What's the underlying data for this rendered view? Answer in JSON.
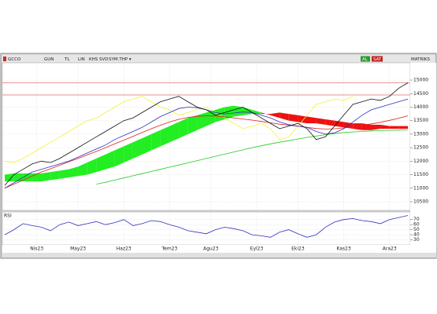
{
  "toolbar": {
    "symbol": "GCCO",
    "period": "GUN",
    "currency": "TL",
    "scale": "LIN",
    "items": [
      "KHS",
      "SVD",
      "SYM.THP ▾"
    ],
    "buy": "AL",
    "sell": "SAT",
    "brand": "MATRIKS"
  },
  "chart_data": [
    {
      "type": "line",
      "xlim": [
        0,
        44
      ],
      "xticks": [
        {
          "value": 3.5,
          "label": "Nis23"
        },
        {
          "value": 8,
          "label": "May23"
        },
        {
          "value": 13,
          "label": "Haz23"
        },
        {
          "value": 18,
          "label": "Tem23"
        },
        {
          "value": 22.5,
          "label": "Agu23"
        },
        {
          "value": 27.5,
          "label": "Eyl23"
        },
        {
          "value": 32,
          "label": "Eki23"
        },
        {
          "value": 37,
          "label": "Kas23"
        },
        {
          "value": 42,
          "label": "Ara23"
        }
      ],
      "ylim": [
        10180,
        15640
      ],
      "yticks": [
        10500,
        11000,
        11500,
        12000,
        12500,
        13000,
        13500,
        14000,
        14500,
        15000
      ],
      "grid": true,
      "levels": [
        14900,
        14450
      ],
      "level_color": "#e07070",
      "cloud": {
        "span_a": [
          11500,
          11550,
          11550,
          11550,
          11550,
          11600,
          11650,
          11700,
          11800,
          11950,
          12100,
          12250,
          12400,
          12550,
          12700,
          12850,
          13000,
          13150,
          13300,
          13450,
          13600,
          13700,
          13800,
          13900,
          14000,
          14050,
          14000,
          13900,
          13800,
          13700,
          13600,
          13500,
          13450,
          13400,
          13400,
          13350,
          13300,
          13250,
          13200,
          13150,
          13150,
          13200,
          13200,
          13200,
          13200
        ],
        "span_b": [
          11250,
          11250,
          11250,
          11250,
          11250,
          11300,
          11350,
          11400,
          11450,
          11500,
          11600,
          11700,
          11800,
          11950,
          12100,
          12250,
          12400,
          12550,
          12700,
          12850,
          13000,
          13150,
          13300,
          13450,
          13550,
          13650,
          13700,
          13750,
          13750,
          13750,
          13800,
          13750,
          13700,
          13650,
          13600,
          13550,
          13500,
          13450,
          13400,
          13400,
          13350,
          13350,
          13300,
          13300,
          13300
        ],
        "up_color": "#22ee22",
        "down_color": "#ee1111"
      },
      "series": [
        {
          "color": "#f2f23a",
          "values": [
            12000,
            11950,
            12100,
            12300,
            12500,
            12700,
            12900,
            13100,
            13300,
            13500,
            13600,
            13800,
            14000,
            14200,
            14300,
            14400,
            14200,
            14000,
            13900,
            13700,
            13800,
            13900,
            14000,
            13800,
            13600,
            13400,
            13200,
            13300,
            13400,
            13200,
            12800,
            12900,
            13300,
            13700,
            14100,
            14200,
            14300,
            14250,
            14400,
            null,
            null,
            null,
            null,
            null,
            null
          ]
        },
        {
          "color": "#22cc22",
          "values": [
            null,
            null,
            null,
            null,
            null,
            null,
            null,
            null,
            null,
            null,
            11150,
            11220,
            11300,
            11380,
            11460,
            11540,
            11620,
            11700,
            11780,
            11860,
            11940,
            12020,
            12100,
            12180,
            12260,
            12340,
            12420,
            12500,
            12570,
            12640,
            12700,
            12760,
            12820,
            12880,
            12930,
            12980,
            13020,
            13060,
            13080,
            13100,
            13120,
            13130,
            13140,
            13150,
            13160
          ]
        },
        {
          "color": "#e02020",
          "values": [
            11000,
            11150,
            11300,
            11450,
            11600,
            11720,
            11850,
            11980,
            12100,
            12230,
            12360,
            12500,
            12640,
            12780,
            12920,
            13060,
            13200,
            13330,
            13450,
            13550,
            13620,
            13660,
            13680,
            13670,
            13640,
            13600,
            13560,
            13520,
            13470,
            13420,
            13370,
            13330,
            13290,
            13250,
            13210,
            13190,
            13200,
            13230,
            13270,
            13320,
            13380,
            13440,
            13510,
            13590,
            13680
          ]
        },
        {
          "color": "#3030c0",
          "values": [
            11000,
            11200,
            11400,
            11600,
            11700,
            11800,
            11900,
            12000,
            12150,
            12300,
            12450,
            12600,
            12800,
            12950,
            13100,
            13250,
            13450,
            13650,
            13800,
            13950,
            14000,
            13980,
            13900,
            13800,
            13750,
            13780,
            13820,
            13800,
            13700,
            13600,
            13450,
            13350,
            13300,
            13250,
            13100,
            13000,
            13050,
            13200,
            13450,
            13700,
            13900,
            14000,
            14100,
            14200,
            14300
          ]
        },
        {
          "color": "#111111",
          "values": [
            11100,
            11500,
            11700,
            11900,
            12000,
            11950,
            12100,
            12300,
            12500,
            12700,
            12900,
            13100,
            13300,
            13500,
            13600,
            13800,
            14000,
            14200,
            14300,
            14400,
            14200,
            14000,
            13900,
            13700,
            13800,
            13900,
            14000,
            13800,
            13600,
            13400,
            13200,
            13300,
            13400,
            13200,
            12800,
            12900,
            13300,
            13700,
            14100,
            14200,
            14300,
            14250,
            14400,
            14700,
            14900
          ]
        }
      ]
    },
    {
      "type": "line",
      "title": "RSI",
      "xlim": [
        0,
        44
      ],
      "ylim": [
        20,
        85
      ],
      "yticks": [
        30,
        40,
        50,
        60,
        70
      ],
      "grid": true,
      "series": [
        {
          "color": "#3030c0",
          "values": [
            40,
            50,
            62,
            58,
            55,
            48,
            60,
            65,
            58,
            62,
            66,
            60,
            64,
            70,
            58,
            62,
            68,
            66,
            60,
            55,
            48,
            45,
            42,
            50,
            55,
            52,
            48,
            40,
            38,
            35,
            45,
            50,
            42,
            35,
            40,
            55,
            65,
            70,
            72,
            68,
            66,
            62,
            70,
            74,
            78
          ]
        }
      ]
    }
  ]
}
